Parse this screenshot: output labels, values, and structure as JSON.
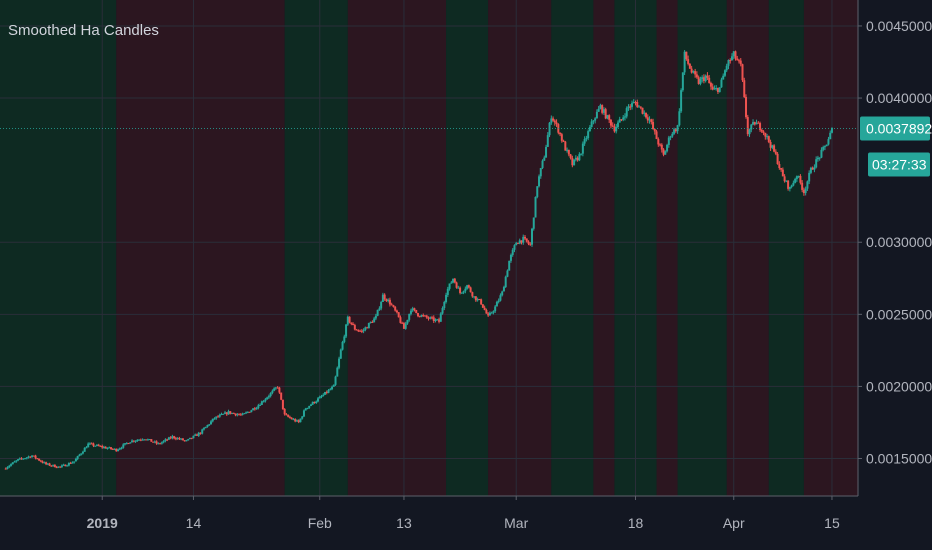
{
  "indicator": {
    "title": "Smoothed Ha Candles"
  },
  "chart_data": {
    "type": "candlestick",
    "title": "Smoothed Ha Candles",
    "y_axis": {
      "ticks": [
        0.0015,
        0.002,
        0.0025,
        0.003,
        0.004,
        0.0045
      ],
      "tick_labels": [
        "0.0015000",
        "0.0020000",
        "0.0025000",
        "0.0030000",
        "0.0040000",
        "0.0045000"
      ],
      "range": [
        0.00124,
        0.00468
      ]
    },
    "x_axis": {
      "ticks": [
        {
          "day": 14,
          "label": "2019",
          "bold": true
        },
        {
          "day": 27,
          "label": "14"
        },
        {
          "day": 45,
          "label": "Feb"
        },
        {
          "day": 57,
          "label": "13"
        },
        {
          "day": 73,
          "label": "Mar"
        },
        {
          "day": 90,
          "label": "18"
        },
        {
          "day": 104,
          "label": "Apr"
        },
        {
          "day": 118,
          "label": "15"
        }
      ],
      "range_days": [
        0,
        120
      ]
    },
    "series_points": [
      [
        0,
        0.00143
      ],
      [
        2,
        0.00149
      ],
      [
        4,
        0.00152
      ],
      [
        6,
        0.00146
      ],
      [
        8,
        0.00144
      ],
      [
        10,
        0.00148
      ],
      [
        12,
        0.0016
      ],
      [
        14,
        0.00158
      ],
      [
        16,
        0.00156
      ],
      [
        18,
        0.00162
      ],
      [
        20,
        0.00164
      ],
      [
        22,
        0.0016
      ],
      [
        24,
        0.00165
      ],
      [
        26,
        0.00162
      ],
      [
        28,
        0.00168
      ],
      [
        30,
        0.00178
      ],
      [
        32,
        0.00182
      ],
      [
        34,
        0.0018
      ],
      [
        36,
        0.00186
      ],
      [
        38,
        0.00195
      ],
      [
        39,
        0.002
      ],
      [
        40,
        0.0018
      ],
      [
        42,
        0.00175
      ],
      [
        43,
        0.00185
      ],
      [
        45,
        0.00192
      ],
      [
        47,
        0.002
      ],
      [
        48,
        0.00225
      ],
      [
        49,
        0.00247
      ],
      [
        50,
        0.0024
      ],
      [
        51,
        0.00238
      ],
      [
        53,
        0.00248
      ],
      [
        54,
        0.00263
      ],
      [
        55,
        0.00258
      ],
      [
        56,
        0.0025
      ],
      [
        57,
        0.0024
      ],
      [
        58,
        0.00254
      ],
      [
        59,
        0.0025
      ],
      [
        60,
        0.00248
      ],
      [
        62,
        0.00245
      ],
      [
        63,
        0.00265
      ],
      [
        64,
        0.00275
      ],
      [
        65,
        0.00265
      ],
      [
        66,
        0.0027
      ],
      [
        67,
        0.00262
      ],
      [
        68,
        0.00258
      ],
      [
        69,
        0.00248
      ],
      [
        70,
        0.00255
      ],
      [
        71,
        0.00265
      ],
      [
        72,
        0.00287
      ],
      [
        73,
        0.003
      ],
      [
        74,
        0.00302
      ],
      [
        75,
        0.00298
      ],
      [
        76,
        0.0034
      ],
      [
        77,
        0.0036
      ],
      [
        78,
        0.00388
      ],
      [
        79,
        0.00378
      ],
      [
        80,
        0.00365
      ],
      [
        81,
        0.00354
      ],
      [
        82,
        0.0036
      ],
      [
        83,
        0.00373
      ],
      [
        84,
        0.00385
      ],
      [
        85,
        0.00394
      ],
      [
        86,
        0.00386
      ],
      [
        87,
        0.00379
      ],
      [
        88,
        0.00385
      ],
      [
        89,
        0.00394
      ],
      [
        90,
        0.00397
      ],
      [
        91,
        0.00391
      ],
      [
        92,
        0.00385
      ],
      [
        93,
        0.00372
      ],
      [
        94,
        0.0036
      ],
      [
        95,
        0.00375
      ],
      [
        96,
        0.0038
      ],
      [
        97,
        0.0043
      ],
      [
        98,
        0.00418
      ],
      [
        99,
        0.00411
      ],
      [
        100,
        0.00415
      ],
      [
        101,
        0.00405
      ],
      [
        102,
        0.00407
      ],
      [
        103,
        0.00423
      ],
      [
        104,
        0.0043
      ],
      [
        105,
        0.00422
      ],
      [
        106,
        0.00376
      ],
      [
        107,
        0.00383
      ],
      [
        108,
        0.00379
      ],
      [
        109,
        0.0037
      ],
      [
        110,
        0.0036
      ],
      [
        111,
        0.00345
      ],
      [
        112,
        0.00337
      ],
      [
        113,
        0.00347
      ],
      [
        114,
        0.00335
      ],
      [
        115,
        0.0035
      ],
      [
        116,
        0.00358
      ],
      [
        117,
        0.00366
      ],
      [
        118,
        0.00378
      ]
    ],
    "current_price": {
      "value": 0.0037892,
      "label": "0.0037892",
      "countdown": "03:27:33"
    },
    "background_bands": {
      "day_starts": [
        0,
        16,
        40,
        49,
        63,
        69,
        78,
        84,
        87,
        93,
        96,
        103,
        109,
        114
      ],
      "trend": [
        "up",
        "down",
        "up",
        "down",
        "up",
        "down",
        "up",
        "down",
        "up",
        "down",
        "up",
        "down",
        "up",
        "down"
      ]
    },
    "colors": {
      "up": "#26a69a",
      "down": "#ef5350",
      "band_up": "#0e2a22",
      "band_down": "#2c1620",
      "background": "#131722",
      "axis_text": "#b2b5be",
      "price_label_bg": "#26a69a",
      "price_label_text": "#ffffff",
      "grid": "#2a2e39"
    },
    "grid": true,
    "legend": "top-left"
  }
}
